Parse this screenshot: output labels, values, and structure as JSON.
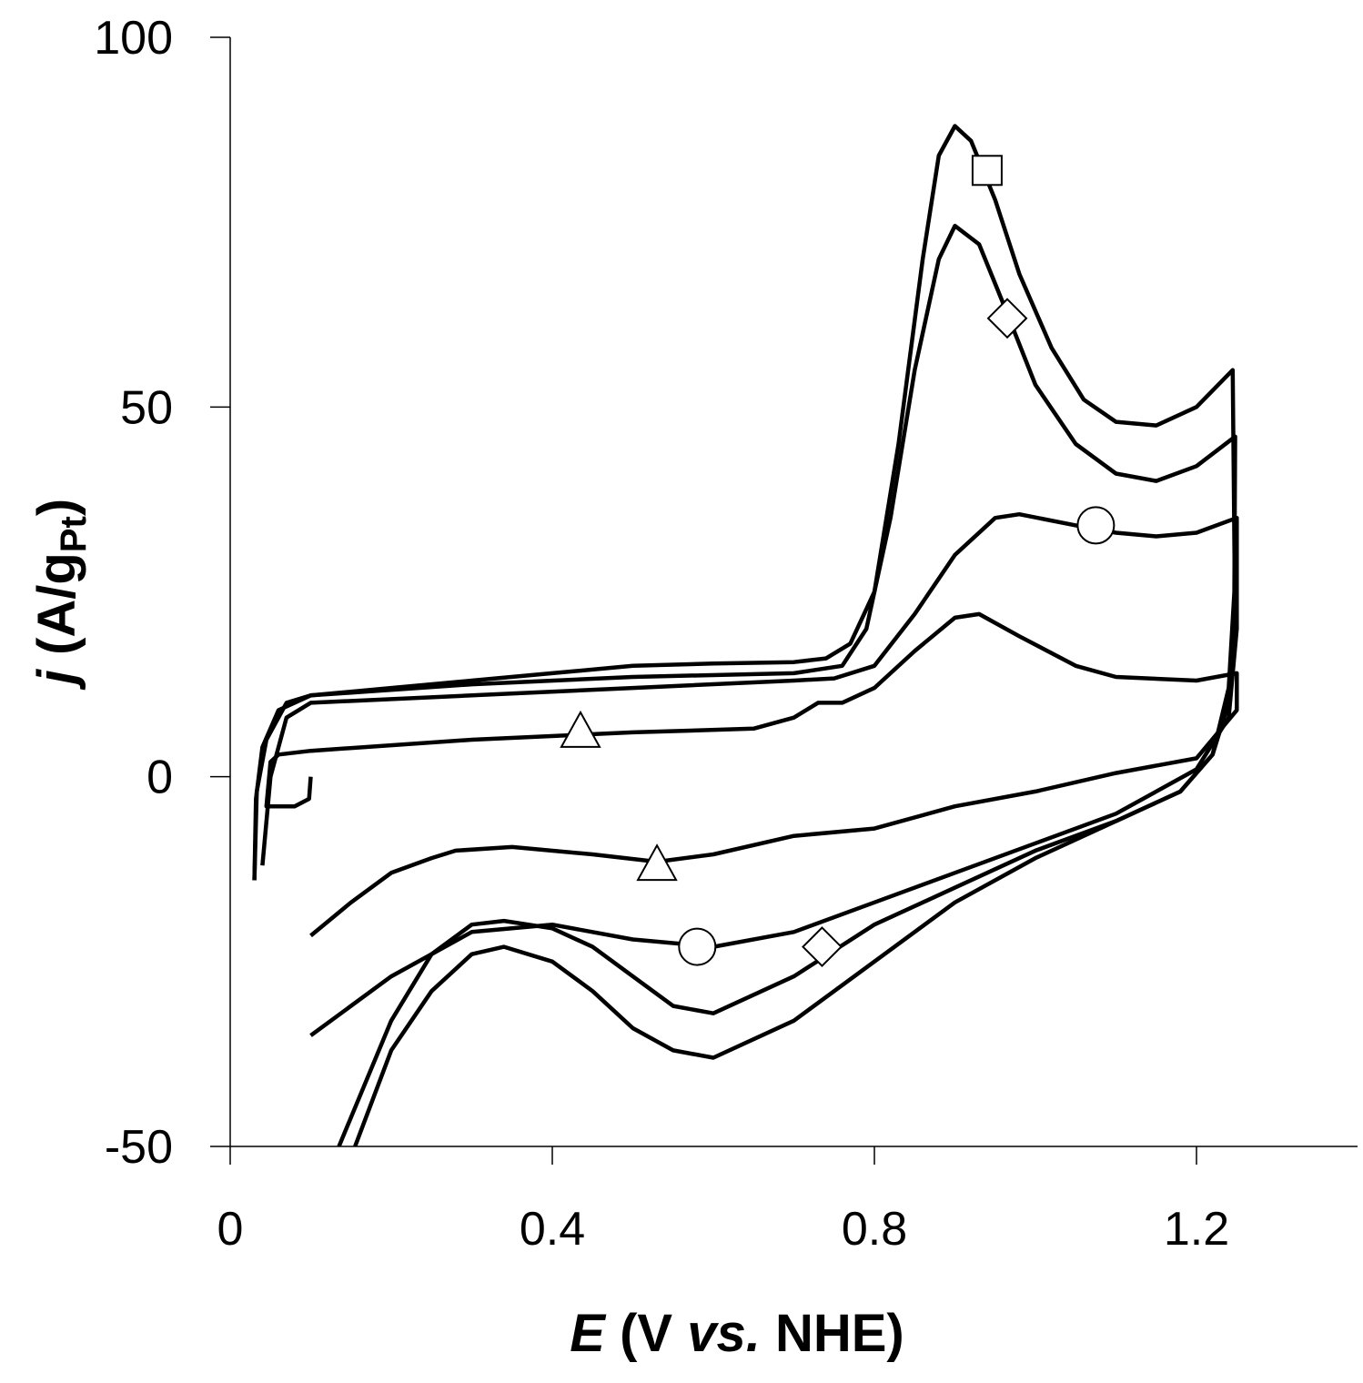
{
  "chart_data": {
    "type": "line",
    "xlabel_parts": [
      "E",
      " (V ",
      "vs.",
      " NHE)"
    ],
    "ylabel_parts": [
      "j",
      " (A/g",
      "Pt",
      ")"
    ],
    "xlim": [
      0,
      1.4
    ],
    "ylim": [
      -50,
      100
    ],
    "xticks": [
      0,
      0.4,
      0.8,
      1.2
    ],
    "yticks": [
      -50,
      0,
      50,
      100
    ],
    "series": [
      {
        "marker": "square",
        "color": "#000000",
        "x": [
          0.03,
          0.032,
          0.04,
          0.06,
          0.1,
          0.2,
          0.3,
          0.4,
          0.5,
          0.6,
          0.7,
          0.74,
          0.77,
          0.8,
          0.83,
          0.86,
          0.88,
          0.9,
          0.92,
          0.95,
          0.98,
          1.02,
          1.06,
          1.1,
          1.15,
          1.2,
          1.245,
          1.248,
          1.24,
          1.22,
          1.18,
          1.1,
          1.0,
          0.9,
          0.8,
          0.7,
          0.6,
          0.55,
          0.5,
          0.45,
          0.4,
          0.34,
          0.3,
          0.25,
          0.2,
          0.155
        ],
        "y": [
          -14,
          -3,
          4,
          9,
          11,
          12,
          13,
          14,
          15,
          15.3,
          15.5,
          16,
          18,
          25,
          45,
          70,
          84,
          88,
          86,
          78,
          68,
          58,
          51,
          48,
          47.5,
          50,
          55,
          20,
          10,
          3,
          -2,
          -6,
          -11,
          -17,
          -25,
          -33,
          -38,
          -37,
          -34,
          -29,
          -25,
          -23,
          -24,
          -29,
          -37,
          -50
        ],
        "marker_x": [
          0.94
        ],
        "marker_y": [
          82
        ]
      },
      {
        "marker": "diamond",
        "color": "#000000",
        "x": [
          0.03,
          0.033,
          0.045,
          0.07,
          0.1,
          0.3,
          0.5,
          0.7,
          0.76,
          0.79,
          0.82,
          0.85,
          0.88,
          0.9,
          0.93,
          0.96,
          1.0,
          1.05,
          1.1,
          1.15,
          1.2,
          1.248,
          1.247,
          1.24,
          1.22,
          1.18,
          1.1,
          1.0,
          0.9,
          0.8,
          0.7,
          0.6,
          0.55,
          0.5,
          0.45,
          0.4,
          0.34,
          0.3,
          0.25,
          0.2,
          0.135
        ],
        "y": [
          -14,
          -2,
          5,
          10,
          11,
          12.5,
          13.5,
          14,
          15,
          20,
          35,
          55,
          70,
          74.5,
          72,
          64,
          53,
          45,
          41,
          40,
          42,
          46,
          25,
          12,
          3,
          -2,
          -6,
          -10,
          -15,
          -20,
          -27,
          -32,
          -31,
          -27,
          -23,
          -20.5,
          -19.5,
          -20,
          -24,
          -33,
          -50
        ],
        "marker_x": [
          0.965,
          0.735
        ],
        "marker_y": [
          62,
          -23
        ]
      },
      {
        "marker": "circle",
        "color": "#000000",
        "x": [
          0.04,
          0.05,
          0.07,
          0.1,
          0.3,
          0.5,
          0.7,
          0.75,
          0.8,
          0.85,
          0.9,
          0.95,
          0.98,
          1.05,
          1.1,
          1.15,
          1.2,
          1.25,
          1.25,
          1.24,
          1.2,
          1.1,
          1.0,
          0.9,
          0.8,
          0.7,
          0.6,
          0.5,
          0.4,
          0.3,
          0.2,
          0.1
        ],
        "y": [
          -12,
          0,
          8,
          10,
          11,
          12,
          13,
          13.3,
          15,
          22,
          30,
          35,
          35.5,
          34,
          33,
          32.5,
          33,
          35,
          20,
          8,
          1,
          -5,
          -9,
          -13,
          -17,
          -21,
          -23,
          -22,
          -20,
          -21,
          -27,
          -35
        ],
        "marker_x": [
          1.075,
          0.58
        ],
        "marker_y": [
          34,
          -23
        ]
      },
      {
        "marker": "triangle",
        "color": "#000000",
        "x": [
          0.1,
          0.098,
          0.08,
          0.045,
          0.05,
          0.06,
          0.1,
          0.3,
          0.5,
          0.65,
          0.7,
          0.73,
          0.76,
          0.8,
          0.85,
          0.9,
          0.93,
          0.98,
          1.05,
          1.1,
          1.2,
          1.25,
          1.25,
          1.2,
          1.1,
          1.0,
          0.9,
          0.8,
          0.7,
          0.6,
          0.53,
          0.45,
          0.35,
          0.28,
          0.25,
          0.2,
          0.15,
          0.1
        ],
        "y": [
          0,
          -3,
          -4,
          -4,
          2,
          3,
          3.5,
          5,
          6,
          6.5,
          8,
          10,
          10,
          12,
          17,
          21.5,
          22,
          19,
          15,
          13.5,
          13,
          14,
          9,
          2.5,
          0.5,
          -2,
          -4,
          -7,
          -8,
          -10.5,
          -11.5,
          -10.5,
          -9.5,
          -10,
          -11,
          -13,
          -17,
          -21.5
        ],
        "marker_x": [
          0.435,
          0.53
        ],
        "marker_y": [
          6,
          -12
        ]
      }
    ]
  }
}
